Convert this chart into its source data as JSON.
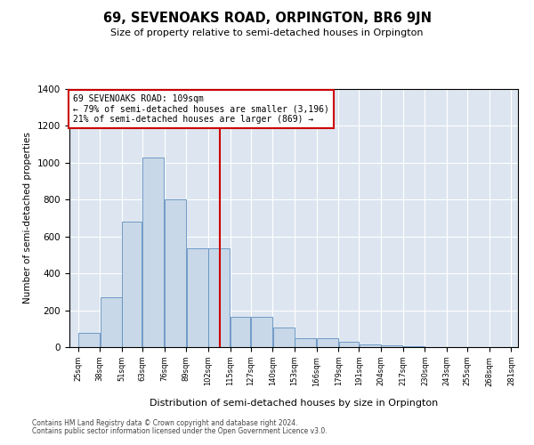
{
  "title": "69, SEVENOAKS ROAD, ORPINGTON, BR6 9JN",
  "subtitle": "Size of property relative to semi-detached houses in Orpington",
  "xlabel": "Distribution of semi-detached houses by size in Orpington",
  "ylabel": "Number of semi-detached properties",
  "footnote1": "Contains HM Land Registry data © Crown copyright and database right 2024.",
  "footnote2": "Contains public sector information licensed under the Open Government Licence v3.0.",
  "annotation_title": "69 SEVENOAKS ROAD: 109sqm",
  "annotation_line1": "← 79% of semi-detached houses are smaller (3,196)",
  "annotation_line2": "21% of semi-detached houses are larger (869) →",
  "bar_left_edges": [
    25,
    38,
    51,
    63,
    76,
    89,
    102,
    115,
    127,
    140,
    153,
    166,
    179,
    191,
    204,
    217,
    230,
    243,
    255,
    268
  ],
  "bar_widths": [
    13,
    13,
    12,
    13,
    13,
    13,
    13,
    12,
    13,
    13,
    13,
    13,
    12,
    13,
    13,
    13,
    13,
    12,
    13,
    13
  ],
  "bar_heights": [
    75,
    270,
    680,
    1030,
    800,
    535,
    535,
    165,
    165,
    105,
    50,
    50,
    30,
    15,
    10,
    5,
    2,
    1,
    1,
    0
  ],
  "bar_color": "#c8d8e8",
  "bar_edge_color": "#6090c0",
  "vline_color": "#cc0000",
  "vline_x": 109,
  "annotation_box_color": "#cc0000",
  "background_color": "#dde6f0",
  "ylim": [
    0,
    1400
  ],
  "yticks": [
    0,
    200,
    400,
    600,
    800,
    1000,
    1200,
    1400
  ],
  "xlim": [
    20,
    285
  ],
  "xtick_labels": [
    "25sqm",
    "38sqm",
    "51sqm",
    "63sqm",
    "76sqm",
    "89sqm",
    "102sqm",
    "115sqm",
    "127sqm",
    "140sqm",
    "153sqm",
    "166sqm",
    "179sqm",
    "191sqm",
    "204sqm",
    "217sqm",
    "230sqm",
    "243sqm",
    "255sqm",
    "268sqm",
    "281sqm"
  ]
}
